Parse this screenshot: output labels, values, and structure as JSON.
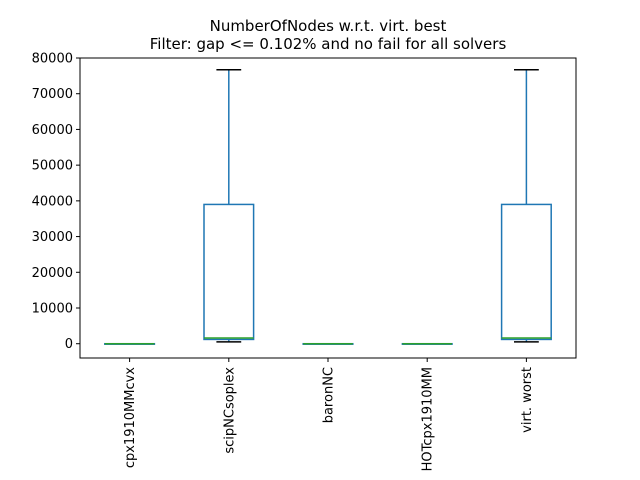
{
  "chart_data": {
    "type": "box",
    "title": "NumberOfNodes w.r.t. virt. best",
    "subtitle": "Filter: gap <= 0.102% and no fail for all solvers",
    "xlabel": "",
    "ylabel": "",
    "ylim": [
      -4000,
      80000
    ],
    "yticks": [
      0,
      10000,
      20000,
      30000,
      40000,
      50000,
      60000,
      70000,
      80000
    ],
    "grid": false,
    "categories": [
      "cpx1910MMcvx",
      "scipNCsoplex",
      "baronNC",
      "HOTcpx1910MM",
      "virt. worst"
    ],
    "boxes": [
      {
        "name": "cpx1910MMcvx",
        "whislo": 0,
        "q1": 0,
        "med": 0,
        "q3": 0,
        "whishi": 0
      },
      {
        "name": "scipNCsoplex",
        "whislo": 500,
        "q1": 1200,
        "med": 1600,
        "q3": 39000,
        "whishi": 76700
      },
      {
        "name": "baronNC",
        "whislo": 0,
        "q1": 0,
        "med": 0,
        "q3": 0,
        "whishi": 0
      },
      {
        "name": "HOTcpx1910MM",
        "whislo": 0,
        "q1": 0,
        "med": 0,
        "q3": 0,
        "whishi": 0
      },
      {
        "name": "virt. worst",
        "whislo": 500,
        "q1": 1200,
        "med": 1600,
        "q3": 39000,
        "whishi": 76700
      }
    ],
    "colors": {
      "box": "#1f77b4",
      "median": "#2ca02c",
      "whisker_cap": "#000000",
      "axes": "#000000"
    }
  }
}
